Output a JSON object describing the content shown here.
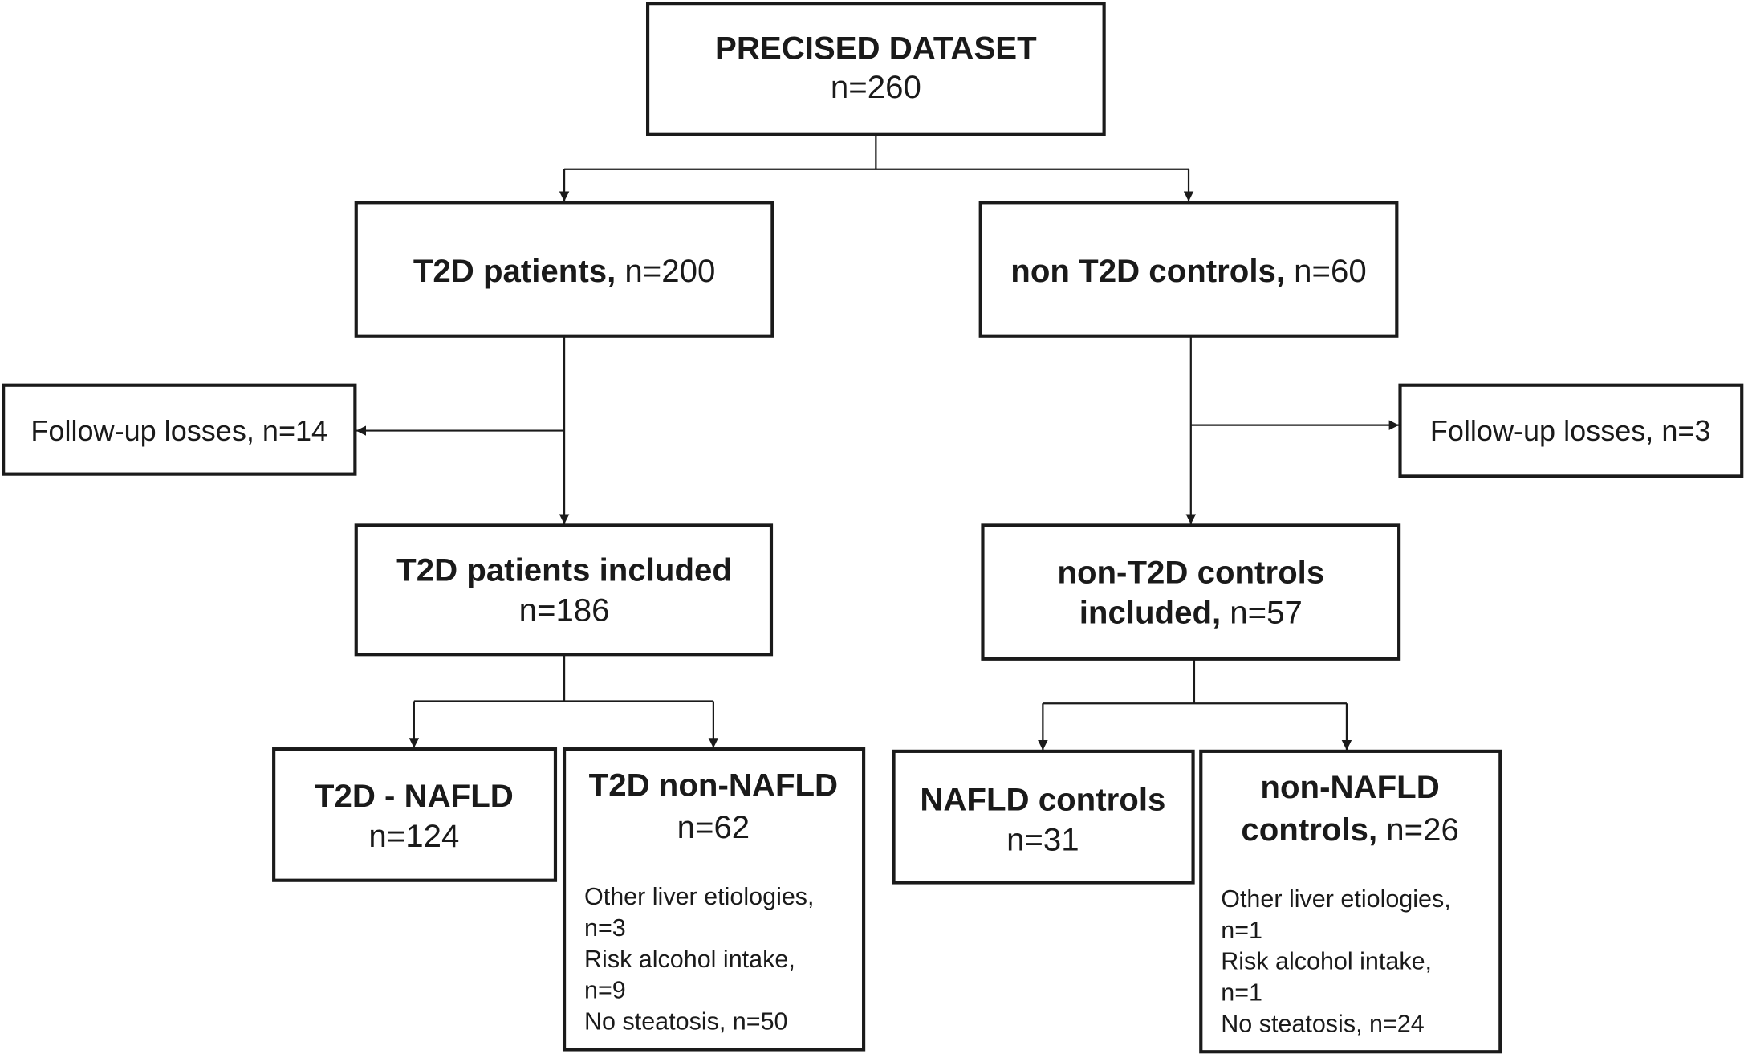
{
  "nodes": {
    "dataset": {
      "title": "PRECISED DATASET",
      "count": "n=260"
    },
    "t2d": {
      "title": "T2D patients,",
      "count": "n=200"
    },
    "controls": {
      "title": "non T2D controls,",
      "count": "n=60"
    },
    "t2d_losses": {
      "text": "Follow-up losses, n=14"
    },
    "control_losses": {
      "text": "Follow-up losses, n=3"
    },
    "t2d_included": {
      "title": "T2D patients included",
      "count": "n=186"
    },
    "controls_included": {
      "title_lines": [
        "non-T2D controls",
        "included,"
      ],
      "count": "n=57"
    },
    "t2d_nafld": {
      "title": "T2D - NAFLD",
      "count": "n=124"
    },
    "t2d_non_nafld": {
      "title": "T2D non-NAFLD",
      "count": "n=62",
      "details": [
        "Other liver etiologies,",
        "n=3",
        "Risk alcohol intake,",
        "n=9",
        "No steatosis, n=50"
      ]
    },
    "nafld_controls": {
      "title": "NAFLD controls",
      "count": "n=31"
    },
    "non_nafld_controls": {
      "title_lines": [
        "non-NAFLD",
        "controls,"
      ],
      "count": "n=26",
      "details": [
        "Other liver etiologies,",
        "n=1",
        "Risk alcohol intake,",
        "n=1",
        "No steatosis, n=24"
      ]
    }
  }
}
